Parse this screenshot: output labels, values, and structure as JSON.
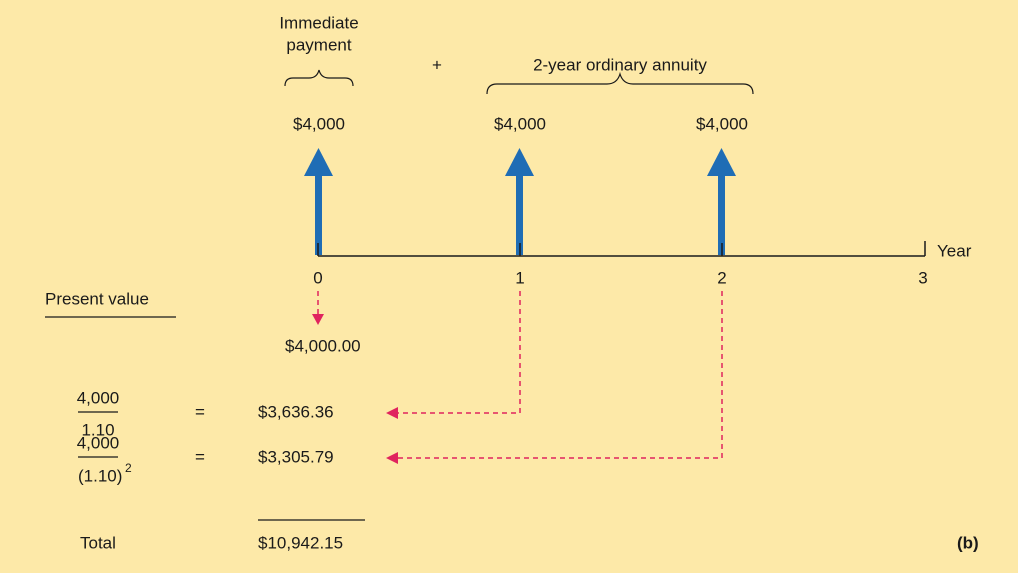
{
  "header": {
    "immediate": [
      "Immediate",
      "payment"
    ],
    "plus": "+",
    "annuity": "2-year ordinary annuity"
  },
  "payments": [
    "$4,000",
    "$4,000",
    "$4,000"
  ],
  "timeline": {
    "ticks": [
      "0",
      "1",
      "2",
      "3"
    ],
    "axis_label": "Year"
  },
  "present_value_label": "Present value",
  "rows": [
    {
      "value": "$4,000.00"
    },
    {
      "numerator": "4,000",
      "denominator": "1.10",
      "equals": "=",
      "value": "$3,636.36"
    },
    {
      "numerator": "4,000",
      "denominator": "(1.10)",
      "exponent": "2",
      "equals": "=",
      "value": "$3,305.79"
    }
  ],
  "total": {
    "label": "Total",
    "value": "$10,942.15"
  },
  "panel_label": "(b)"
}
